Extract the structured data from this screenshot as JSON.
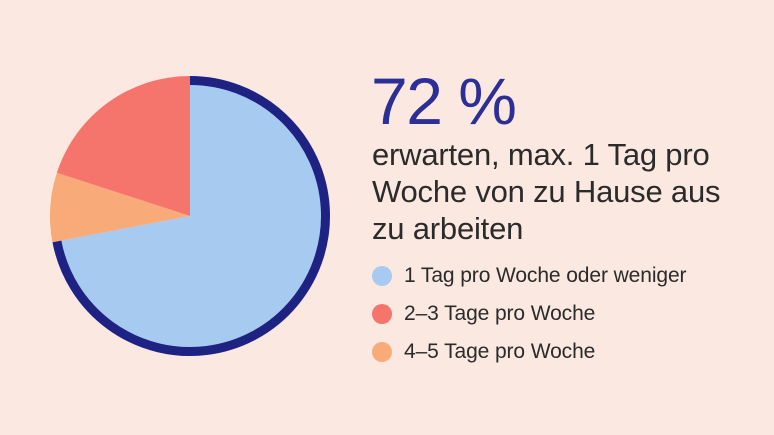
{
  "background_color": "#FAE8E1",
  "headline": {
    "value": "72 %",
    "color": "#2B2F96"
  },
  "description": {
    "lines": [
      "erwarten, max. 1 Tag pro",
      "Woche von zu Hause aus",
      "zu arbeiten"
    ]
  },
  "chart_data": {
    "type": "pie",
    "title": "72 % erwarten, max. 1 Tag pro Woche von zu Hause aus zu arbeiten",
    "categories": [
      "1 Tag pro Woche oder weniger",
      "2–3 Tage pro Woche",
      "4–5 Tage pro Woche"
    ],
    "values": [
      72,
      20,
      8
    ],
    "colors": [
      "#A7CAF0",
      "#F5756C",
      "#F8AB79"
    ],
    "start_angle_deg": 0,
    "clockwise_order": [
      0,
      2,
      1
    ],
    "outline": {
      "slice_index": 0,
      "color": "#1E2383",
      "width": 9
    },
    "legend_position": "right",
    "grid": false
  }
}
